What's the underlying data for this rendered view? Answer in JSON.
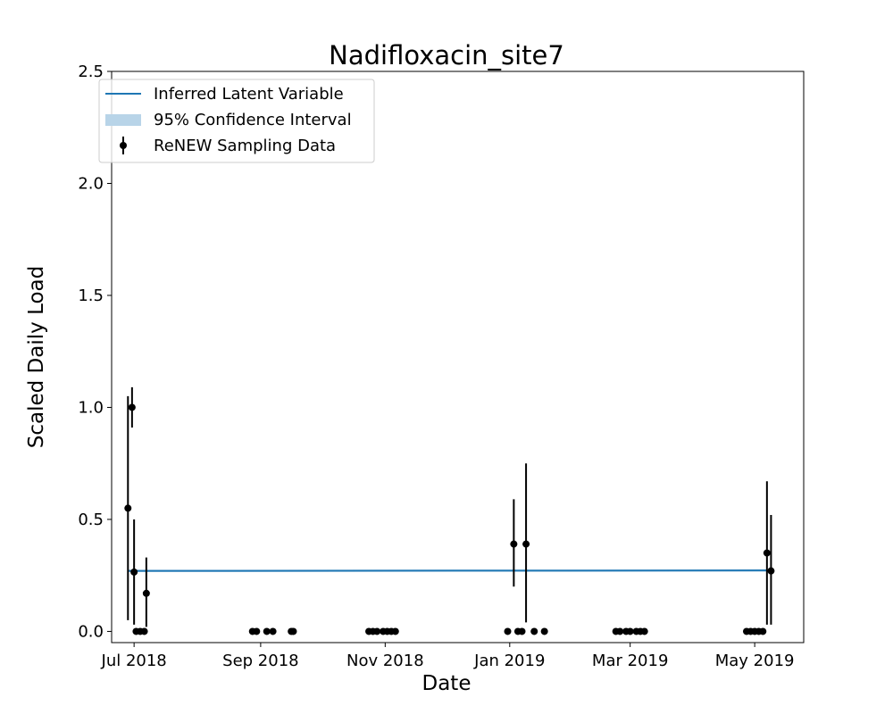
{
  "chart_data": {
    "type": "line",
    "title": "Nadifloxacin_site7",
    "xlabel": "Date",
    "ylabel": "Scaled Daily Load",
    "ylim": [
      -0.05,
      2.5
    ],
    "xlim": [
      "2018-06-20",
      "2019-05-25"
    ],
    "x_ticks": [
      {
        "date": "2018-07-01",
        "label": "Jul 2018"
      },
      {
        "date": "2018-09-01",
        "label": "Sep 2018"
      },
      {
        "date": "2018-11-01",
        "label": "Nov 2018"
      },
      {
        "date": "2019-01-01",
        "label": "Jan 2019"
      },
      {
        "date": "2019-03-01",
        "label": "Mar 2019"
      },
      {
        "date": "2019-05-01",
        "label": "May 2019"
      }
    ],
    "y_ticks": [
      {
        "value": 0.0,
        "label": "0.0"
      },
      {
        "value": 0.5,
        "label": "0.5"
      },
      {
        "value": 1.0,
        "label": "1.0"
      },
      {
        "value": 1.5,
        "label": "1.5"
      },
      {
        "value": 2.0,
        "label": "2.0"
      },
      {
        "value": 2.5,
        "label": "2.5"
      }
    ],
    "grid": false,
    "legend": {
      "placement": "top-left",
      "entries": [
        {
          "label": "Inferred Latent Variable",
          "kind": "line",
          "color": "#1f77b4"
        },
        {
          "label": "95% Confidence Interval",
          "kind": "patch",
          "color": "#b8d4e8"
        },
        {
          "label": "ReNEW Sampling Data",
          "kind": "errorbar",
          "color": "#000000"
        }
      ]
    },
    "series": [
      {
        "name": "Inferred Latent Variable",
        "color": "#1f77b4",
        "x": [
          "2018-06-28",
          "2019-05-07"
        ],
        "y": [
          0.27,
          0.272
        ]
      },
      {
        "name": "95% Confidence Interval",
        "color": "#b8d4e8",
        "x": [
          "2018-06-28",
          "2019-05-07"
        ],
        "lower": [
          0.265,
          0.267
        ],
        "upper": [
          0.275,
          0.277
        ]
      },
      {
        "name": "ReNEW Sampling Data",
        "color": "#000000",
        "points": [
          {
            "x": "2018-06-28",
            "y": 0.55,
            "ylow": 0.05,
            "yhigh": 1.05
          },
          {
            "x": "2018-06-30",
            "y": 1.0,
            "ylow": 0.91,
            "yhigh": 1.09
          },
          {
            "x": "2018-07-01",
            "y": 0.265,
            "ylow": 0.03,
            "yhigh": 0.5
          },
          {
            "x": "2018-07-02",
            "y": 0.0
          },
          {
            "x": "2018-07-04",
            "y": 0.0
          },
          {
            "x": "2018-07-06",
            "y": 0.0
          },
          {
            "x": "2018-07-07",
            "y": 0.17,
            "ylow": 0.02,
            "yhigh": 0.33
          },
          {
            "x": "2018-08-28",
            "y": 0.0
          },
          {
            "x": "2018-08-30",
            "y": 0.0
          },
          {
            "x": "2018-09-04",
            "y": 0.0
          },
          {
            "x": "2018-09-07",
            "y": 0.0
          },
          {
            "x": "2018-09-16",
            "y": 0.0
          },
          {
            "x": "2018-09-17",
            "y": 0.0
          },
          {
            "x": "2018-10-24",
            "y": 0.0
          },
          {
            "x": "2018-10-26",
            "y": 0.0
          },
          {
            "x": "2018-10-28",
            "y": 0.0
          },
          {
            "x": "2018-10-31",
            "y": 0.0
          },
          {
            "x": "2018-11-02",
            "y": 0.0
          },
          {
            "x": "2018-11-04",
            "y": 0.0
          },
          {
            "x": "2018-11-06",
            "y": 0.0
          },
          {
            "x": "2018-12-31",
            "y": 0.0
          },
          {
            "x": "2019-01-03",
            "y": 0.39,
            "ylow": 0.2,
            "yhigh": 0.59
          },
          {
            "x": "2019-01-05",
            "y": 0.0
          },
          {
            "x": "2019-01-07",
            "y": 0.0
          },
          {
            "x": "2019-01-09",
            "y": 0.39,
            "ylow": 0.04,
            "yhigh": 0.75
          },
          {
            "x": "2019-01-13",
            "y": 0.0
          },
          {
            "x": "2019-01-18",
            "y": 0.0
          },
          {
            "x": "2019-02-22",
            "y": 0.0
          },
          {
            "x": "2019-02-24",
            "y": 0.0
          },
          {
            "x": "2019-02-27",
            "y": 0.0
          },
          {
            "x": "2019-03-01",
            "y": 0.0
          },
          {
            "x": "2019-03-04",
            "y": 0.0
          },
          {
            "x": "2019-03-06",
            "y": 0.0
          },
          {
            "x": "2019-03-08",
            "y": 0.0
          },
          {
            "x": "2019-04-27",
            "y": 0.0
          },
          {
            "x": "2019-04-29",
            "y": 0.0
          },
          {
            "x": "2019-05-01",
            "y": 0.0
          },
          {
            "x": "2019-05-03",
            "y": 0.0
          },
          {
            "x": "2019-05-05",
            "y": 0.0
          },
          {
            "x": "2019-05-07",
            "y": 0.35,
            "ylow": 0.03,
            "yhigh": 0.67
          },
          {
            "x": "2019-05-09",
            "y": 0.27,
            "ylow": 0.03,
            "yhigh": 0.52
          }
        ]
      }
    ]
  }
}
